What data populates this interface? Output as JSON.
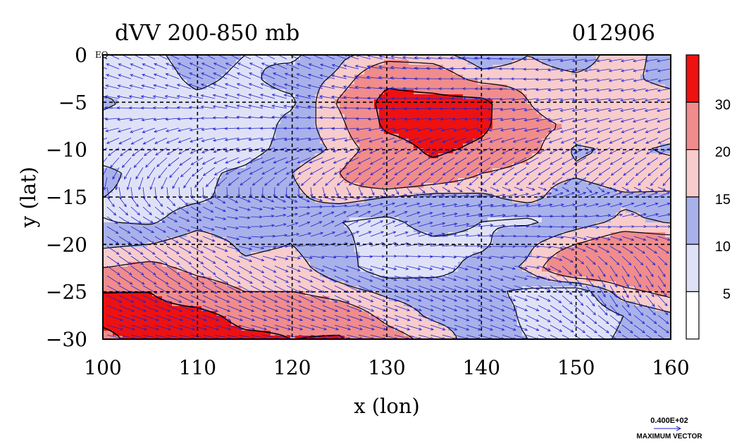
{
  "figure": {
    "title_left": "dVV 200-850 mb",
    "title_right": "012906",
    "eq_label": "EQ",
    "x_label": "x (lon)",
    "y_label": "y (lat)",
    "x_ticks": [
      "100",
      "110",
      "120",
      "130",
      "140",
      "150",
      "160"
    ],
    "y_ticks": [
      "0",
      "−5",
      "−10",
      "−15",
      "−20",
      "−25",
      "−30"
    ],
    "colorbar_labels": [
      "30",
      "20",
      "15",
      "10",
      "5"
    ],
    "vector_ref_value": "0.400E+02",
    "vector_ref_label": "MAXIMUM VECTOR"
  },
  "colors": {
    "level_0_5": "#ffffff",
    "level_5_10": "#dfe2f7",
    "level_10_15": "#a9b1ea",
    "level_15_20": "#f8cccc",
    "level_20_30": "#f08c8c",
    "level_30_plus": "#ee1111",
    "vector": "#2222cc"
  },
  "chart_data": {
    "type": "heatmap",
    "title": "dVV 200-850 mb",
    "date_label": "012906",
    "xlabel": "x (lon)",
    "ylabel": "y (lat)",
    "xlim": [
      100,
      160
    ],
    "ylim": [
      -30,
      0
    ],
    "grid": true,
    "colorbar_levels": [
      0,
      5,
      10,
      15,
      20,
      30
    ],
    "lon": [
      100,
      105,
      110,
      115,
      120,
      125,
      130,
      135,
      140,
      145,
      150,
      155,
      160
    ],
    "lat": [
      0,
      -2.5,
      -5,
      -7.5,
      -10,
      -12.5,
      -15,
      -17.5,
      -20,
      -22.5,
      -25,
      -27.5,
      -30
    ],
    "values": [
      [
        8,
        9,
        12,
        10,
        9,
        14,
        17,
        17,
        12,
        15,
        12,
        18,
        12
      ],
      [
        7,
        8,
        11,
        9,
        12,
        16,
        28,
        25,
        17,
        17,
        16,
        17,
        12
      ],
      [
        11,
        8,
        9,
        8,
        9,
        21,
        33,
        33,
        33,
        20,
        15,
        20,
        19
      ],
      [
        8,
        7,
        7,
        6,
        12,
        18,
        32,
        35,
        32,
        22,
        19,
        20,
        18
      ],
      [
        6,
        6,
        7,
        8,
        12,
        16,
        25,
        32,
        28,
        22,
        14,
        16,
        14
      ],
      [
        12,
        7,
        9,
        11,
        15,
        20,
        30,
        26,
        20,
        17,
        16,
        19,
        18
      ],
      [
        10,
        8,
        9,
        12,
        14,
        17,
        15,
        13,
        14,
        17,
        11,
        14,
        14
      ],
      [
        10,
        9,
        13,
        12,
        15,
        10,
        9,
        12,
        10,
        9,
        12,
        16,
        14
      ],
      [
        14,
        15,
        18,
        14,
        15,
        11,
        8,
        9,
        9,
        14,
        20,
        25,
        24
      ],
      [
        20,
        22,
        18,
        16,
        17,
        12,
        7,
        8,
        12,
        16,
        30,
        28,
        29
      ],
      [
        30,
        30,
        24,
        20,
        20,
        17,
        14,
        13,
        11,
        9,
        6,
        18,
        22
      ],
      [
        32,
        33,
        33,
        27,
        28,
        25,
        18,
        14,
        13,
        9,
        5,
        10,
        14
      ],
      [
        28,
        33,
        35,
        32,
        30,
        31,
        23,
        18,
        12,
        10,
        7,
        11,
        13
      ]
    ],
    "vectors_u": [
      [
        -0.6,
        -0.6,
        -0.6,
        -0.6,
        -0.6,
        -0.7,
        -0.8,
        -0.9,
        -0.9,
        -0.8,
        -0.7,
        -0.6,
        -0.6
      ],
      [
        -0.6,
        -0.6,
        -0.7,
        -0.7,
        -0.7,
        -0.8,
        -0.9,
        -0.9,
        -0.9,
        -0.8,
        -0.7,
        -0.6,
        -0.5
      ],
      [
        -0.7,
        -0.7,
        -0.7,
        -0.7,
        -0.8,
        -0.8,
        -0.8,
        -0.8,
        -0.8,
        -0.7,
        -0.7,
        -0.7,
        -0.6
      ],
      [
        -0.7,
        -0.6,
        -0.6,
        -0.7,
        -0.8,
        -0.8,
        -0.7,
        -0.6,
        -0.6,
        -0.7,
        -0.7,
        -0.6,
        -0.6
      ],
      [
        -0.5,
        -0.5,
        -0.6,
        -0.7,
        -0.7,
        -0.7,
        -0.6,
        -0.5,
        -0.5,
        -0.6,
        -0.6,
        -0.6,
        -0.5
      ],
      [
        -0.2,
        -0.3,
        -0.5,
        -0.7,
        -0.6,
        -0.6,
        -0.6,
        -0.6,
        -0.6,
        -0.6,
        -0.6,
        -0.5,
        -0.4
      ],
      [
        0.3,
        0.3,
        0.4,
        0.5,
        0.4,
        0.6,
        0.5,
        0.7,
        0.8,
        0.7,
        0.5,
        0.5,
        0.5
      ],
      [
        0.5,
        0.4,
        0.4,
        0.4,
        0.4,
        0.5,
        0.6,
        0.8,
        0.8,
        0.8,
        0.6,
        0.5,
        0.6
      ],
      [
        0.6,
        0.6,
        0.6,
        0.6,
        0.6,
        0.6,
        0.7,
        0.7,
        0.6,
        0.6,
        0.5,
        0.5,
        0.5
      ],
      [
        0.7,
        0.7,
        0.7,
        0.7,
        0.7,
        0.7,
        0.7,
        0.7,
        0.6,
        0.6,
        0.3,
        0.3,
        0.3
      ],
      [
        0.8,
        0.8,
        0.8,
        0.8,
        0.8,
        0.8,
        0.8,
        0.8,
        0.7,
        0.6,
        0.4,
        0.3,
        0.5
      ],
      [
        0.9,
        0.9,
        0.9,
        0.9,
        0.9,
        0.9,
        0.9,
        0.8,
        0.8,
        0.6,
        0.5,
        0.5,
        0.5
      ],
      [
        0.9,
        0.9,
        0.9,
        0.9,
        0.9,
        0.9,
        0.8,
        0.8,
        0.7,
        0.6,
        0.5,
        0.5,
        0.5
      ]
    ],
    "vectors_v": [
      [
        0.3,
        0.3,
        0.3,
        0.3,
        0.3,
        0.3,
        0.2,
        0.1,
        0.1,
        0.0,
        -0.1,
        -0.1,
        -0.1
      ],
      [
        0.2,
        0.2,
        0.3,
        0.3,
        0.3,
        0.2,
        0.1,
        0.0,
        0.0,
        0.0,
        -0.1,
        -0.1,
        -0.1
      ],
      [
        0.1,
        0.1,
        0.1,
        0.2,
        0.2,
        0.1,
        0.0,
        0.0,
        0.0,
        -0.1,
        -0.1,
        -0.1,
        -0.1
      ],
      [
        -0.1,
        -0.2,
        -0.1,
        0.0,
        0.0,
        0.0,
        -0.1,
        -0.1,
        -0.1,
        -0.1,
        -0.2,
        -0.2,
        -0.2
      ],
      [
        -0.4,
        -0.4,
        -0.3,
        -0.2,
        -0.2,
        -0.2,
        -0.3,
        -0.3,
        -0.3,
        -0.3,
        -0.3,
        -0.3,
        -0.3
      ],
      [
        -0.6,
        -0.6,
        -0.5,
        -0.4,
        -0.4,
        -0.4,
        -0.4,
        -0.4,
        -0.4,
        -0.4,
        -0.4,
        -0.4,
        -0.4
      ],
      [
        -0.4,
        -0.4,
        -0.3,
        -0.2,
        -0.2,
        -0.1,
        0.1,
        0.1,
        0.1,
        0.2,
        0.2,
        0.2,
        0.2
      ],
      [
        -0.3,
        -0.2,
        -0.1,
        0.0,
        0.2,
        0.3,
        0.3,
        0.2,
        0.1,
        0.0,
        0.0,
        0.1,
        0.1
      ],
      [
        -0.4,
        -0.4,
        -0.3,
        -0.1,
        0.1,
        0.2,
        0.2,
        0.1,
        0.0,
        0.0,
        -0.2,
        -0.3,
        -0.3
      ],
      [
        -0.5,
        -0.5,
        -0.5,
        -0.4,
        -0.3,
        -0.3,
        -0.2,
        -0.2,
        -0.2,
        -0.1,
        -0.5,
        -0.5,
        -0.5
      ],
      [
        -0.4,
        -0.4,
        -0.4,
        -0.4,
        -0.4,
        -0.4,
        -0.3,
        -0.3,
        -0.3,
        -0.2,
        -0.5,
        -0.6,
        -0.5
      ],
      [
        -0.3,
        -0.3,
        -0.3,
        -0.3,
        -0.3,
        -0.3,
        -0.3,
        -0.3,
        -0.3,
        -0.3,
        -0.4,
        -0.4,
        -0.4
      ],
      [
        -0.2,
        -0.2,
        -0.2,
        -0.2,
        -0.2,
        -0.2,
        -0.2,
        -0.2,
        -0.2,
        -0.2,
        -0.3,
        -0.3,
        -0.3
      ]
    ],
    "legend_location": "right colorbar"
  }
}
